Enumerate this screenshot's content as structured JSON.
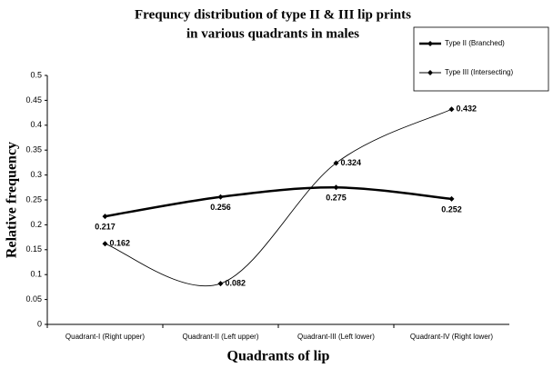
{
  "chart_data": {
    "type": "line",
    "title": [
      "Frequncy distribution of type II & III lip prints",
      "in various quadrants in males"
    ],
    "x_label": "Quadrants of lip",
    "y_label": "Relative frequency",
    "categories": [
      "Quadrant-I (Right upper)",
      "Quadrant-II (Left upper)",
      "Quadrant-III (Left lower)",
      "Quadrant-IV (Right lower)"
    ],
    "series": [
      {
        "name": "Type II (Branched)",
        "color": "#000000",
        "values": [
          0.217,
          0.256,
          0.275,
          0.252
        ]
      },
      {
        "name": "Type III (Intersecting)",
        "color": "#000000",
        "values": [
          0.162,
          0.082,
          0.324,
          0.432
        ]
      }
    ],
    "ylim": [
      0,
      0.5
    ],
    "yticks": [
      0,
      0.05,
      0.1,
      0.15,
      0.2,
      0.25,
      0.3,
      0.35,
      0.4,
      0.45,
      0.5
    ],
    "smooth": true,
    "legend": "upper right"
  }
}
